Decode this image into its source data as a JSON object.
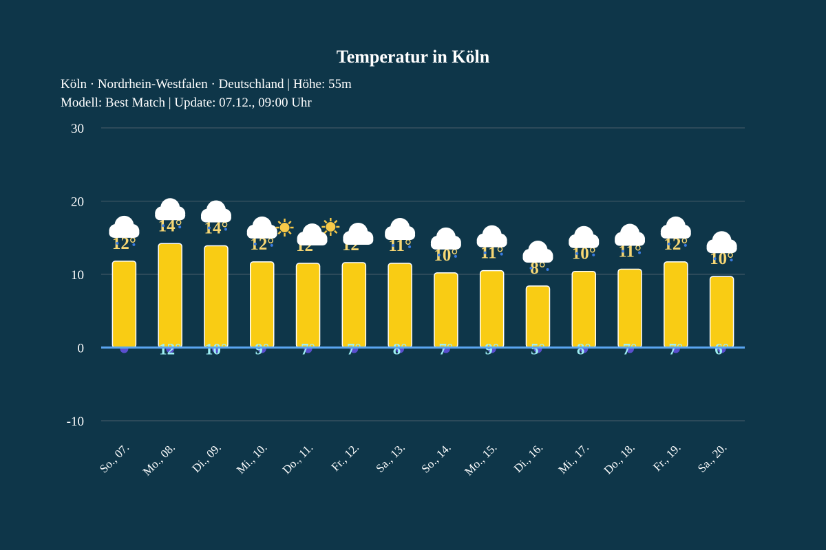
{
  "chart_data": {
    "type": "bar",
    "title": "Temperatur in Köln",
    "subtitle_lines": [
      "Köln · Nordrhein-Westfalen · Deutschland | Höhe: 55m",
      "Modell: Best Match | Update: 07.12., 09:00 Uhr"
    ],
    "categories": [
      "So., 07.",
      "Mo., 08.",
      "Di., 09.",
      "Mi., 10.",
      "Do., 11.",
      "Fr., 12.",
      "Sa., 13.",
      "So., 14.",
      "Mo., 15.",
      "Di., 16.",
      "Mi., 17.",
      "Do., 18.",
      "Fr., 19.",
      "Sa., 20."
    ],
    "series": [
      {
        "name": "max",
        "values": [
          11.8,
          14.2,
          13.9,
          11.7,
          11.5,
          11.6,
          11.5,
          10.2,
          10.5,
          8.4,
          10.4,
          10.7,
          11.7,
          9.7
        ]
      }
    ],
    "max_labels": [
      "12°",
      "14°",
      "14°",
      "12°",
      "12°",
      "12°",
      "11°",
      "10°",
      "11°",
      "8°",
      "10°",
      "11°",
      "12°",
      "10°"
    ],
    "min_labels": [
      null,
      "12°",
      "10°",
      "9°",
      "7°",
      "7°",
      "8°",
      "7°",
      "9°",
      "5°",
      "8°",
      "7°",
      "7°",
      "6°"
    ],
    "icons": [
      "cloud-rain",
      "cloud-rain",
      "cloud-rain",
      "cloud-rain",
      "sun-cloud",
      "sun-cloud",
      "cloud-rain",
      "cloud-rain",
      "cloud-rain",
      "cloud-rain",
      "cloud-rain",
      "cloud-rain",
      "cloud-rain",
      "cloud-rain"
    ],
    "yticks": [
      -10,
      0,
      10,
      20,
      30
    ],
    "ylim": [
      -10,
      30
    ],
    "grid": true,
    "colors": {
      "background": "#0e3649",
      "bar": "#f9cc14",
      "bar_stroke": "#ffffff",
      "max_label": "#f7d774",
      "min_label": "#9ff0f5",
      "zero_line": "#5aa5f0",
      "grid": "#4a5f6b",
      "precip_dot": "#5a4fcf"
    }
  }
}
